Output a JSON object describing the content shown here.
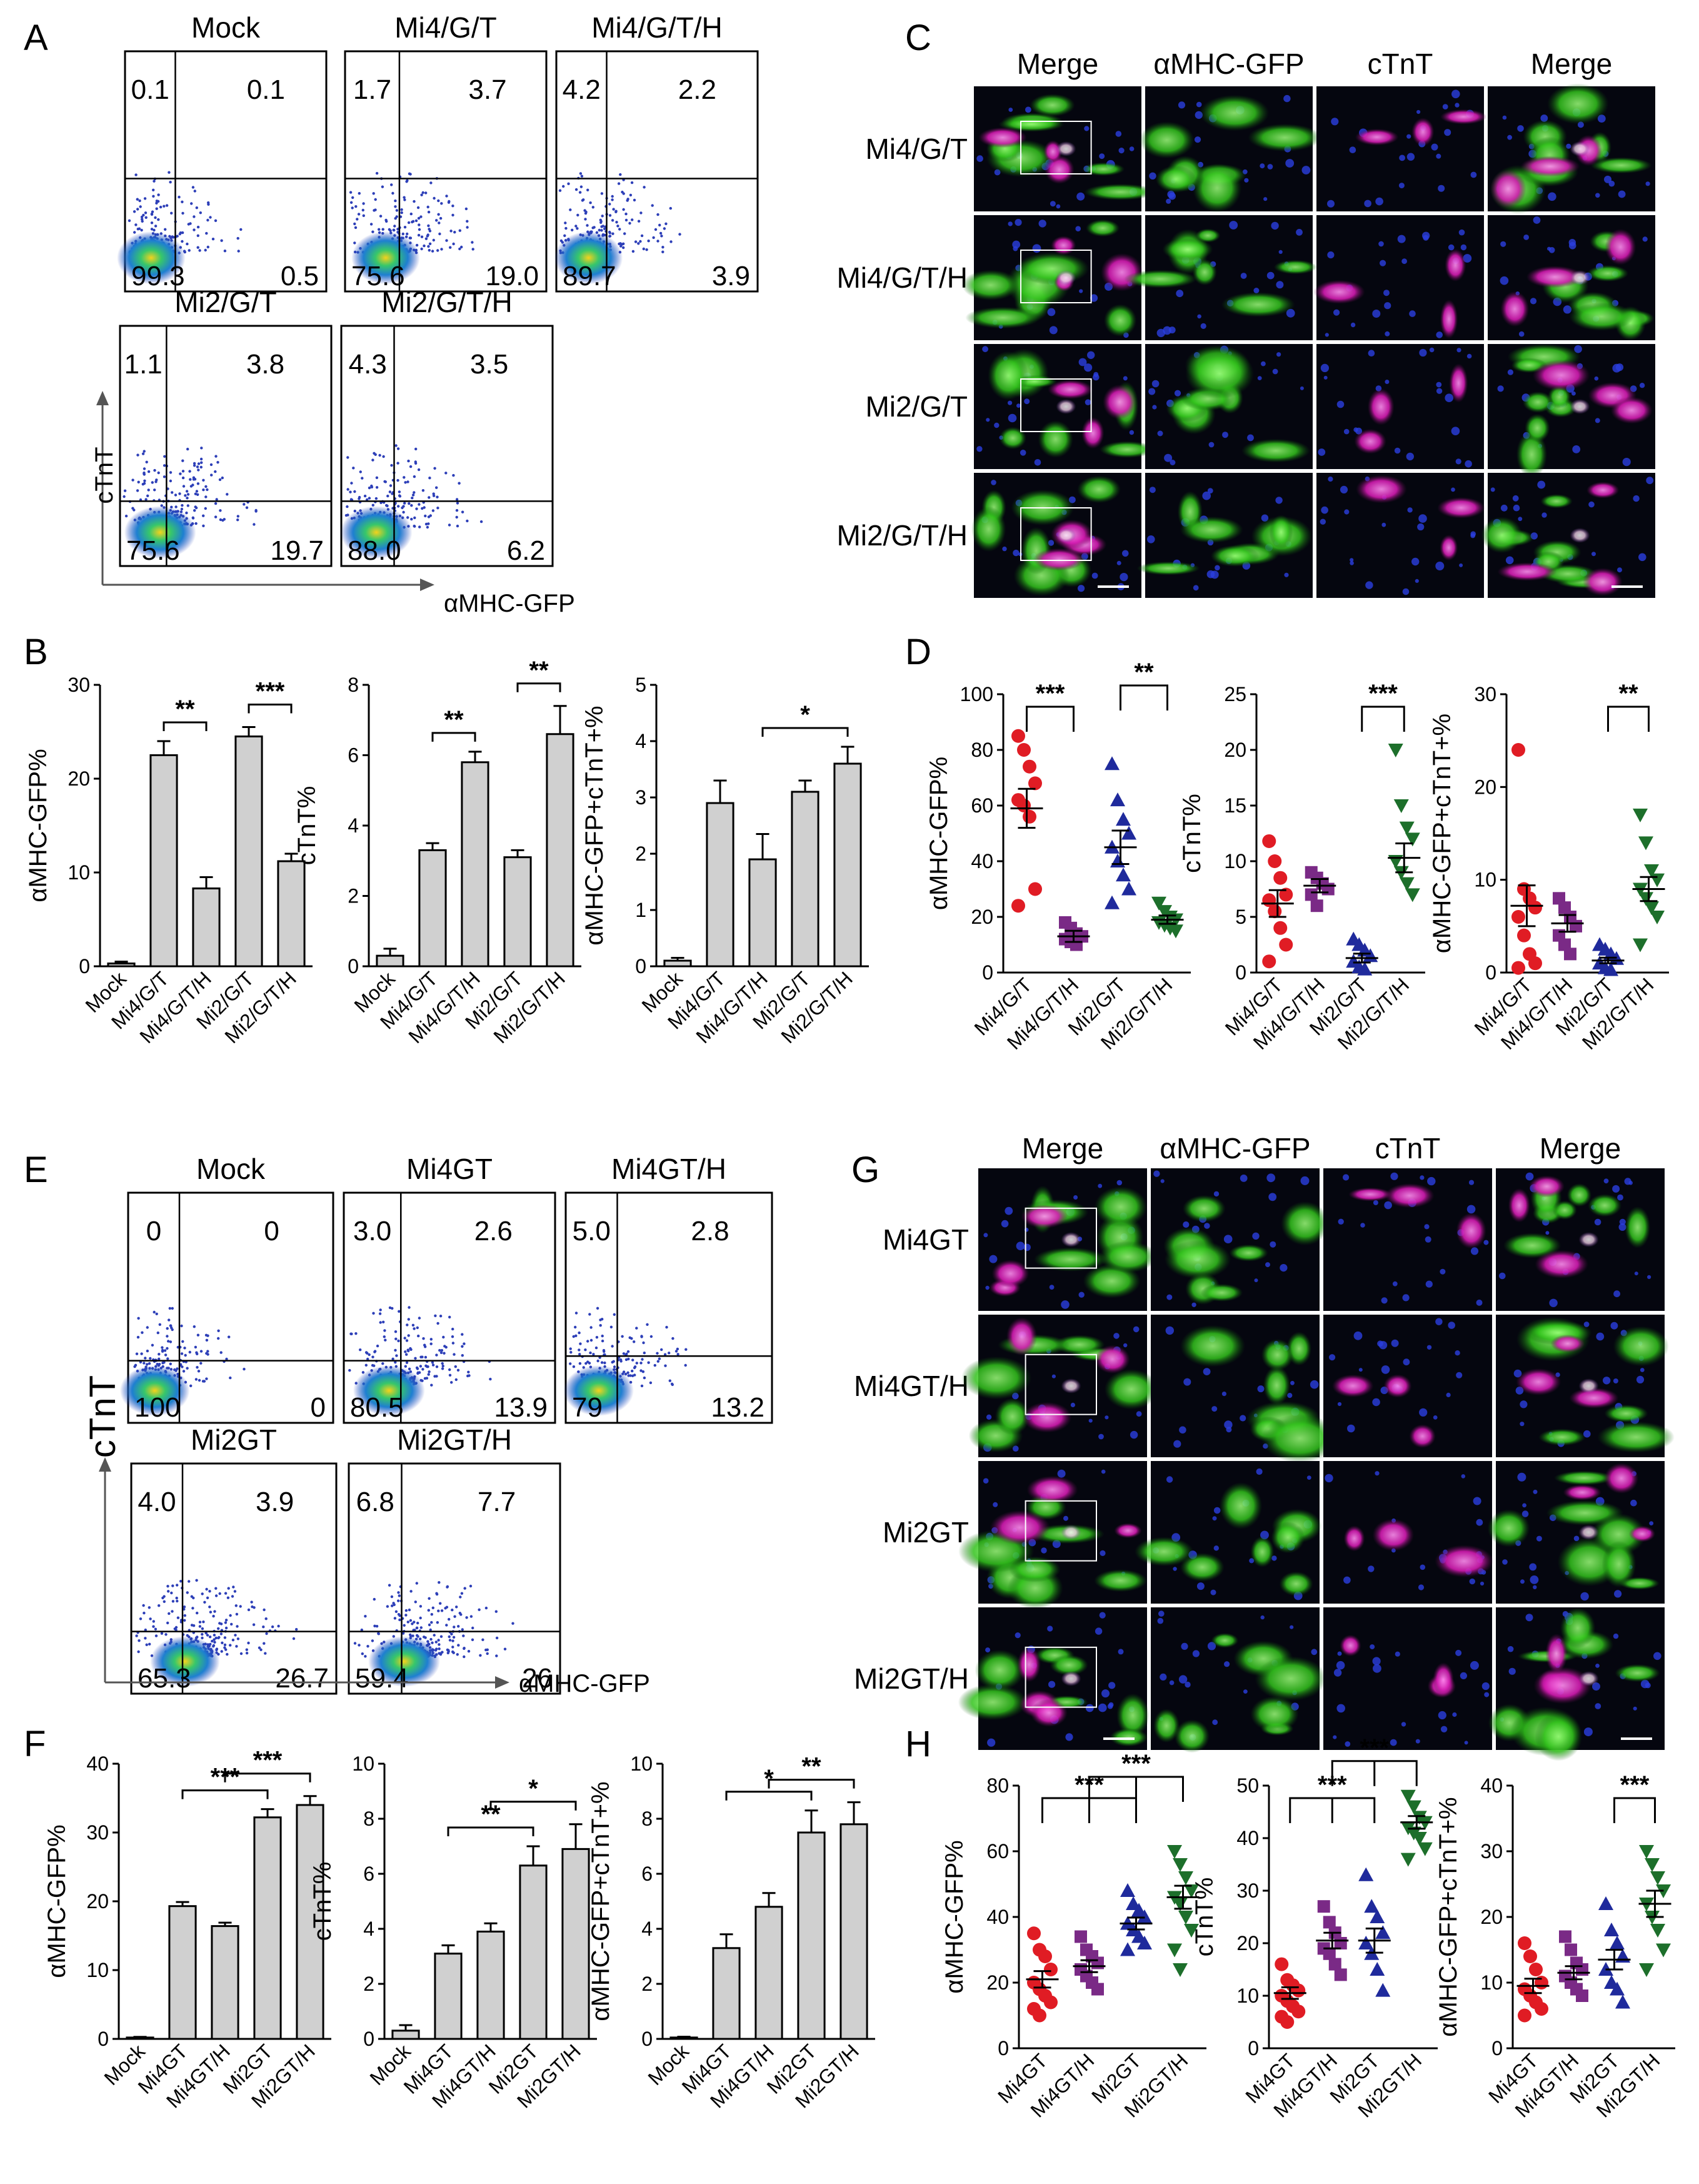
{
  "panel_letters": [
    "A",
    "B",
    "C",
    "D",
    "E",
    "F",
    "G",
    "H"
  ],
  "colors": {
    "bar_fill": "#d0d0d0",
    "red": "#e01c24",
    "purple": "#7a2a86",
    "blue": "#1f2a9c",
    "green": "#1d6f2b",
    "gfp_label": "#2a8a3a",
    "ctnt_label": "#c2188a"
  },
  "flow_A": {
    "y_axis": "cTnT",
    "x_axis": "αMHC-GFP",
    "plots": [
      {
        "title": "Mock",
        "q": [
          "0.1",
          "0.1",
          "99.3",
          "0.5"
        ]
      },
      {
        "title": "Mi4/G/T",
        "q": [
          "1.7",
          "3.7",
          "75.6",
          "19.0"
        ]
      },
      {
        "title": "Mi4/G/T/H",
        "q": [
          "4.2",
          "2.2",
          "89.7",
          "3.9"
        ]
      },
      {
        "title": "Mi2/G/T",
        "q": [
          "1.1",
          "3.8",
          "75.6",
          "19.7"
        ]
      },
      {
        "title": "Mi2/G/T/H",
        "q": [
          "4.3",
          "3.5",
          "88.0",
          "6.2"
        ]
      }
    ]
  },
  "flow_E": {
    "y_axis": "cTnT",
    "x_axis": "αMHC-GFP",
    "plots": [
      {
        "title": "Mock",
        "q": [
          "0",
          "0",
          "100",
          "0"
        ]
      },
      {
        "title": "Mi4GT",
        "q": [
          "3.0",
          "2.6",
          "80.5",
          "13.9"
        ]
      },
      {
        "title": "Mi4GT/H",
        "q": [
          "5.0",
          "2.8",
          "79",
          "13.2"
        ]
      },
      {
        "title": "Mi2GT",
        "q": [
          "4.0",
          "3.9",
          "65.3",
          "26.7"
        ]
      },
      {
        "title": "Mi2GT/H",
        "q": [
          "6.8",
          "7.7",
          "59.4",
          "26"
        ]
      }
    ]
  },
  "micro_C": {
    "headers": [
      "Merge",
      "αMHC-GFP",
      "cTnT",
      "Merge"
    ],
    "rows": [
      "Mi4/G/T",
      "Mi4/G/T/H",
      "Mi2/G/T",
      "Mi2/G/T/H"
    ]
  },
  "micro_G": {
    "headers": [
      "Merge",
      "αMHC-GFP",
      "cTnT",
      "Merge"
    ],
    "rows": [
      "Mi4GT",
      "Mi4GT/H",
      "Mi2GT",
      "Mi2GT/H"
    ]
  },
  "chart_data": [
    {
      "panel": "B",
      "type": "bar",
      "ylabel": "αMHC-GFP%",
      "categories": [
        "Mock",
        "Mi4/G/T",
        "Mi4/G/T/H",
        "Mi2/G/T",
        "Mi2/G/T/H"
      ],
      "values": [
        0.3,
        22.5,
        8.3,
        24.5,
        11.2
      ],
      "errors": [
        0.2,
        1.5,
        1.2,
        1.0,
        0.8
      ],
      "ylim": [
        0,
        30
      ],
      "yticks": [
        0,
        10,
        20,
        30
      ],
      "sig": [
        {
          "a": 1,
          "b": 2,
          "label": "**"
        },
        {
          "a": 3,
          "b": 4,
          "label": "***"
        }
      ]
    },
    {
      "panel": "B",
      "type": "bar",
      "ylabel": "cTnT%",
      "categories": [
        "Mock",
        "Mi4/G/T",
        "Mi4/G/T/H",
        "Mi2/G/T",
        "Mi2/G/T/H"
      ],
      "values": [
        0.3,
        3.3,
        5.8,
        3.1,
        6.6
      ],
      "errors": [
        0.2,
        0.2,
        0.3,
        0.2,
        0.8
      ],
      "ylim": [
        0,
        8
      ],
      "yticks": [
        0,
        2,
        4,
        6,
        8
      ],
      "sig": [
        {
          "a": 1,
          "b": 2,
          "label": "**"
        },
        {
          "a": 3,
          "b": 4,
          "label": "**"
        }
      ]
    },
    {
      "panel": "B",
      "type": "bar",
      "ylabel": "αMHC-GFP+cTnT+%",
      "categories": [
        "Mock",
        "Mi4/G/T",
        "Mi4/G/T/H",
        "Mi2/G/T",
        "Mi2/G/T/H"
      ],
      "values": [
        0.1,
        2.9,
        1.9,
        3.1,
        3.6
      ],
      "errors": [
        0.05,
        0.4,
        0.45,
        0.2,
        0.3
      ],
      "ylim": [
        0,
        5
      ],
      "yticks": [
        0,
        1,
        2,
        3,
        4,
        5
      ],
      "sig": [
        {
          "a": 2,
          "b": 4,
          "label": "*"
        }
      ]
    },
    {
      "panel": "D",
      "type": "scatter",
      "ylabel": "αMHC-GFP%",
      "categories": [
        "Mi4/G/T",
        "Mi4/G/T/H",
        "Mi2/G/T",
        "Mi2/G/T/H"
      ],
      "ylim": [
        0,
        100
      ],
      "yticks": [
        0,
        20,
        40,
        60,
        80,
        100
      ],
      "points": [
        [
          85,
          80,
          74,
          68,
          62,
          60,
          56,
          30,
          24
        ],
        [
          18,
          16,
          14,
          13,
          12,
          11,
          10
        ],
        [
          75,
          62,
          55,
          50,
          45,
          40,
          35,
          30,
          25
        ],
        [
          25,
          22,
          20,
          19,
          18,
          17,
          16,
          15
        ]
      ],
      "means": [
        59,
        13,
        45,
        19
      ],
      "sems": [
        7,
        2,
        6,
        1.5
      ],
      "sig": [
        {
          "a": 0,
          "b": 1,
          "label": "***"
        },
        {
          "a": 2,
          "b": 3,
          "label": "**"
        }
      ]
    },
    {
      "panel": "D",
      "type": "scatter",
      "ylabel": "cTnT%",
      "categories": [
        "Mi4/G/T",
        "Mi4/G/T/H",
        "Mi2/G/T",
        "Mi2/G/T/H"
      ],
      "ylim": [
        0,
        25
      ],
      "yticks": [
        0,
        5,
        10,
        15,
        20,
        25
      ],
      "points": [
        [
          11.8,
          10,
          8.5,
          7,
          6.5,
          5.5,
          4,
          2.5,
          1
        ],
        [
          9,
          8.5,
          8,
          7.5,
          7,
          6
        ],
        [
          3,
          2.5,
          2,
          1.5,
          1,
          0.5,
          0.3
        ],
        [
          20,
          15,
          13,
          12,
          10,
          9,
          8,
          7
        ]
      ],
      "means": [
        6.2,
        7.8,
        1.3,
        10.3
      ],
      "sems": [
        1.2,
        0.6,
        0.4,
        1.3
      ],
      "sig": [
        {
          "a": 2,
          "b": 3,
          "label": "***"
        }
      ]
    },
    {
      "panel": "D",
      "type": "scatter",
      "ylabel": "αMHC-GFP+cTnT+%",
      "categories": [
        "Mi4/G/T",
        "Mi4/G/T/H",
        "Mi2/G/T",
        "Mi2/G/T/H"
      ],
      "ylim": [
        0,
        30
      ],
      "yticks": [
        0,
        10,
        20,
        30
      ],
      "points": [
        [
          24,
          9,
          8,
          7,
          6,
          4,
          2,
          1,
          0.5
        ],
        [
          8,
          7,
          6,
          5,
          4,
          3,
          2
        ],
        [
          3,
          2.5,
          2,
          1.5,
          1,
          0.5,
          0.3
        ],
        [
          17,
          14,
          11,
          10,
          9,
          8,
          7,
          6,
          3
        ]
      ],
      "means": [
        7.2,
        5.3,
        1.3,
        9.0
      ],
      "sems": [
        2.2,
        0.9,
        0.3,
        1.3
      ],
      "sig": [
        {
          "a": 2,
          "b": 3,
          "label": "**"
        }
      ]
    },
    {
      "panel": "F",
      "type": "bar",
      "ylabel": "αMHC-GFP%",
      "categories": [
        "Mock",
        "Mi4GT",
        "Mi4GT/H",
        "Mi2GT",
        "Mi2GT/H"
      ],
      "values": [
        0.2,
        19.3,
        16.4,
        32.2,
        34.0
      ],
      "errors": [
        0.1,
        0.6,
        0.5,
        1.2,
        1.3
      ],
      "ylim": [
        0,
        40
      ],
      "yticks": [
        0,
        10,
        20,
        30,
        40
      ],
      "sig": [
        {
          "a": 1,
          "b": 3,
          "label": "***"
        },
        {
          "a": 2,
          "b": 4,
          "label": "***"
        }
      ]
    },
    {
      "panel": "F",
      "type": "bar",
      "ylabel": "cTnT%",
      "categories": [
        "Mock",
        "Mi4GT",
        "Mi4GT/H",
        "Mi2GT",
        "Mi2GT/H"
      ],
      "values": [
        0.3,
        3.1,
        3.9,
        6.3,
        6.9
      ],
      "errors": [
        0.2,
        0.3,
        0.3,
        0.7,
        0.9
      ],
      "ylim": [
        0,
        10
      ],
      "yticks": [
        0,
        2,
        4,
        6,
        8,
        10
      ],
      "sig": [
        {
          "a": 1,
          "b": 3,
          "label": "**"
        },
        {
          "a": 2,
          "b": 4,
          "label": "*"
        }
      ]
    },
    {
      "panel": "F",
      "type": "bar",
      "ylabel": "αMHC-GFP+cTnT+%",
      "categories": [
        "Mock",
        "Mi4GT",
        "Mi4GT/H",
        "Mi2GT",
        "Mi2GT/H"
      ],
      "values": [
        0.05,
        3.3,
        4.8,
        7.5,
        7.8
      ],
      "errors": [
        0.03,
        0.5,
        0.5,
        0.8,
        0.8
      ],
      "ylim": [
        0,
        10
      ],
      "yticks": [
        0,
        2,
        4,
        6,
        8,
        10
      ],
      "sig": [
        {
          "a": 1,
          "b": 3,
          "label": "*"
        },
        {
          "a": 2,
          "b": 4,
          "label": "**"
        }
      ]
    },
    {
      "panel": "H",
      "type": "scatter",
      "ylabel": "αMHC-GFP%",
      "categories": [
        "Mi4GT",
        "Mi4GT/H",
        "Mi2GT",
        "Mi2GT/H"
      ],
      "ylim": [
        0,
        80
      ],
      "yticks": [
        0,
        20,
        40,
        60,
        80
      ],
      "points": [
        [
          35,
          30,
          28,
          24,
          20,
          18,
          16,
          14,
          12,
          10
        ],
        [
          34,
          30,
          28,
          26,
          24,
          22,
          20,
          18
        ],
        [
          48,
          44,
          42,
          40,
          38,
          36,
          34,
          32,
          30
        ],
        [
          60,
          56,
          52,
          48,
          46,
          44,
          40,
          36,
          30,
          24
        ]
      ],
      "means": [
        21,
        25,
        38,
        46
      ],
      "sems": [
        2.5,
        1.8,
        1.8,
        3.5
      ],
      "sig": [
        {
          "a": 0,
          "b": 2,
          "label": "***",
          "drop": [
            1
          ]
        },
        {
          "a": 1,
          "b": 3,
          "label": "***",
          "drop": [
            2
          ]
        }
      ]
    },
    {
      "panel": "H",
      "type": "scatter",
      "ylabel": "cTnT%",
      "categories": [
        "Mi4GT",
        "Mi4GT/H",
        "Mi2GT",
        "Mi2GT/H"
      ],
      "ylim": [
        0,
        50
      ],
      "yticks": [
        0,
        10,
        20,
        30,
        40,
        50
      ],
      "points": [
        [
          16,
          13,
          12,
          11,
          10,
          9,
          8,
          7,
          6,
          5
        ],
        [
          27,
          24,
          22,
          20,
          19,
          18,
          16,
          14
        ],
        [
          33,
          27,
          25,
          22,
          20,
          18,
          15,
          11
        ],
        [
          48,
          46,
          44,
          43,
          42,
          41,
          40,
          38,
          36
        ]
      ],
      "means": [
        10.5,
        20.5,
        20.5,
        43
      ],
      "sems": [
        1.1,
        1.5,
        2.3,
        1.2
      ],
      "sig": [
        {
          "a": 0,
          "b": 2,
          "label": "***",
          "drop": [
            1
          ]
        },
        {
          "a": 1,
          "b": 3,
          "label": "***",
          "drop": [
            2
          ]
        }
      ]
    },
    {
      "panel": "H",
      "type": "scatter",
      "ylabel": "αMHC-GFP+cTnT+%",
      "categories": [
        "Mi4GT",
        "Mi4GT/H",
        "Mi2GT",
        "Mi2GT/H"
      ],
      "ylim": [
        0,
        40
      ],
      "yticks": [
        0,
        10,
        20,
        30,
        40
      ],
      "points": [
        [
          16,
          14,
          12,
          10,
          9,
          8,
          7,
          6,
          5
        ],
        [
          17,
          15,
          13,
          12,
          11,
          10,
          9,
          8
        ],
        [
          22,
          18,
          16,
          14,
          12,
          10,
          9,
          7
        ],
        [
          30,
          28,
          26,
          24,
          22,
          20,
          18,
          15,
          12
        ]
      ],
      "means": [
        9.5,
        11.5,
        13.5,
        22
      ],
      "sems": [
        1.1,
        1.0,
        1.5,
        2.0
      ],
      "sig": [
        {
          "a": 2,
          "b": 3,
          "label": "***",
          "drop": [
            2
          ]
        }
      ]
    }
  ]
}
